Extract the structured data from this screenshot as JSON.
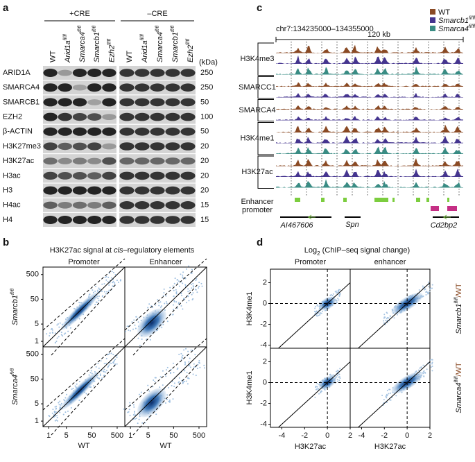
{
  "panel_a": {
    "label": "a",
    "groups": [
      "+CRE",
      "–CRE"
    ],
    "unit": "(kDa)",
    "lanes": [
      {
        "name": "WT"
      },
      {
        "name": "Arid1a",
        "sup": "fl/fl"
      },
      {
        "name": "Smarca4",
        "sup": "fl/fl"
      },
      {
        "name": "Smarcb1",
        "sup": "fl/fl"
      },
      {
        "name": "Ezh2",
        "sup": "fl/fl"
      }
    ],
    "rows": [
      {
        "name": "ARID1A",
        "kda": "250"
      },
      {
        "name": "SMARCA4",
        "kda": "250"
      },
      {
        "name": "SMARCB1",
        "kda": "50"
      },
      {
        "name": "EZH2",
        "kda": "100"
      },
      {
        "name": "β-ACTIN",
        "kda": "50"
      },
      {
        "name": "H3K27me3",
        "kda": "20"
      },
      {
        "name": "H3K27ac",
        "kda": "20"
      },
      {
        "name": "H3ac",
        "kda": "20"
      },
      {
        "name": "H3",
        "kda": "20"
      },
      {
        "name": "H4ac",
        "kda": "15"
      },
      {
        "name": "H4",
        "kda": "15"
      }
    ]
  },
  "panel_b": {
    "label": "b",
    "title_pre": "H3K27ac signal at ",
    "title_it": "cis",
    "title_post": "–regulatory elements",
    "columns": [
      "Promoter",
      "Enhancer"
    ],
    "rows": [
      {
        "name": "Smarcb1",
        "sup": "fl/fl",
        "color": "#45358f"
      },
      {
        "name": "Smarca4",
        "sup": "fl/fl",
        "color": "#3a8c84"
      }
    ],
    "x_label": "WT",
    "x_label_color": "#8a4a24",
    "log": true,
    "lim": [
      0.6,
      1000
    ],
    "ticks": [
      1,
      5,
      50,
      500
    ]
  },
  "panel_c": {
    "label": "c",
    "region": "chr7:134235000–134355000",
    "scale": "120 kb",
    "legend": [
      {
        "name": "WT",
        "color": "#8a4a24"
      },
      {
        "name": "Smarcb1",
        "sup": "fl/fl",
        "color": "#45358f"
      },
      {
        "name": "Smarca4",
        "sup": "fl/fl",
        "color": "#3a8c84"
      }
    ],
    "tracks": [
      {
        "name": "H3K4me3",
        "n": 3
      },
      {
        "name": "SMARCC1",
        "n": 2
      },
      {
        "name": "SMARCA4",
        "n": 2
      },
      {
        "name": "H3K4me1",
        "n": 3
      },
      {
        "name": "H3K27ac",
        "n": 3
      }
    ],
    "annotations": [
      "Enhancer",
      "promoter"
    ],
    "genes": [
      "AI467606",
      "Spn",
      "Cd2bp2"
    ]
  },
  "panel_d": {
    "label": "d",
    "title_pre": "Log",
    "title_sub": "2",
    "title_post": " (ChIP–seq signal change)",
    "columns": [
      "Promoter",
      "enhancer"
    ],
    "y_label": "H3K4me1",
    "x_label": "H3K27ac",
    "rows": [
      {
        "name": "Smarcb1",
        "sup": "fl/fl",
        "color": "#45358f",
        "tail": "/WT"
      },
      {
        "name": "Smarca4",
        "sup": "fl/fl",
        "color": "#3a8c84",
        "tail": "/WT"
      }
    ],
    "tail_color": "#8a4a24",
    "xlim": [
      -5,
      2
    ],
    "ylim": [
      -4.3,
      3.3
    ],
    "xticks": [
      -4,
      -2,
      0,
      2
    ],
    "yticks": [
      -4,
      -2,
      0,
      2
    ]
  }
}
